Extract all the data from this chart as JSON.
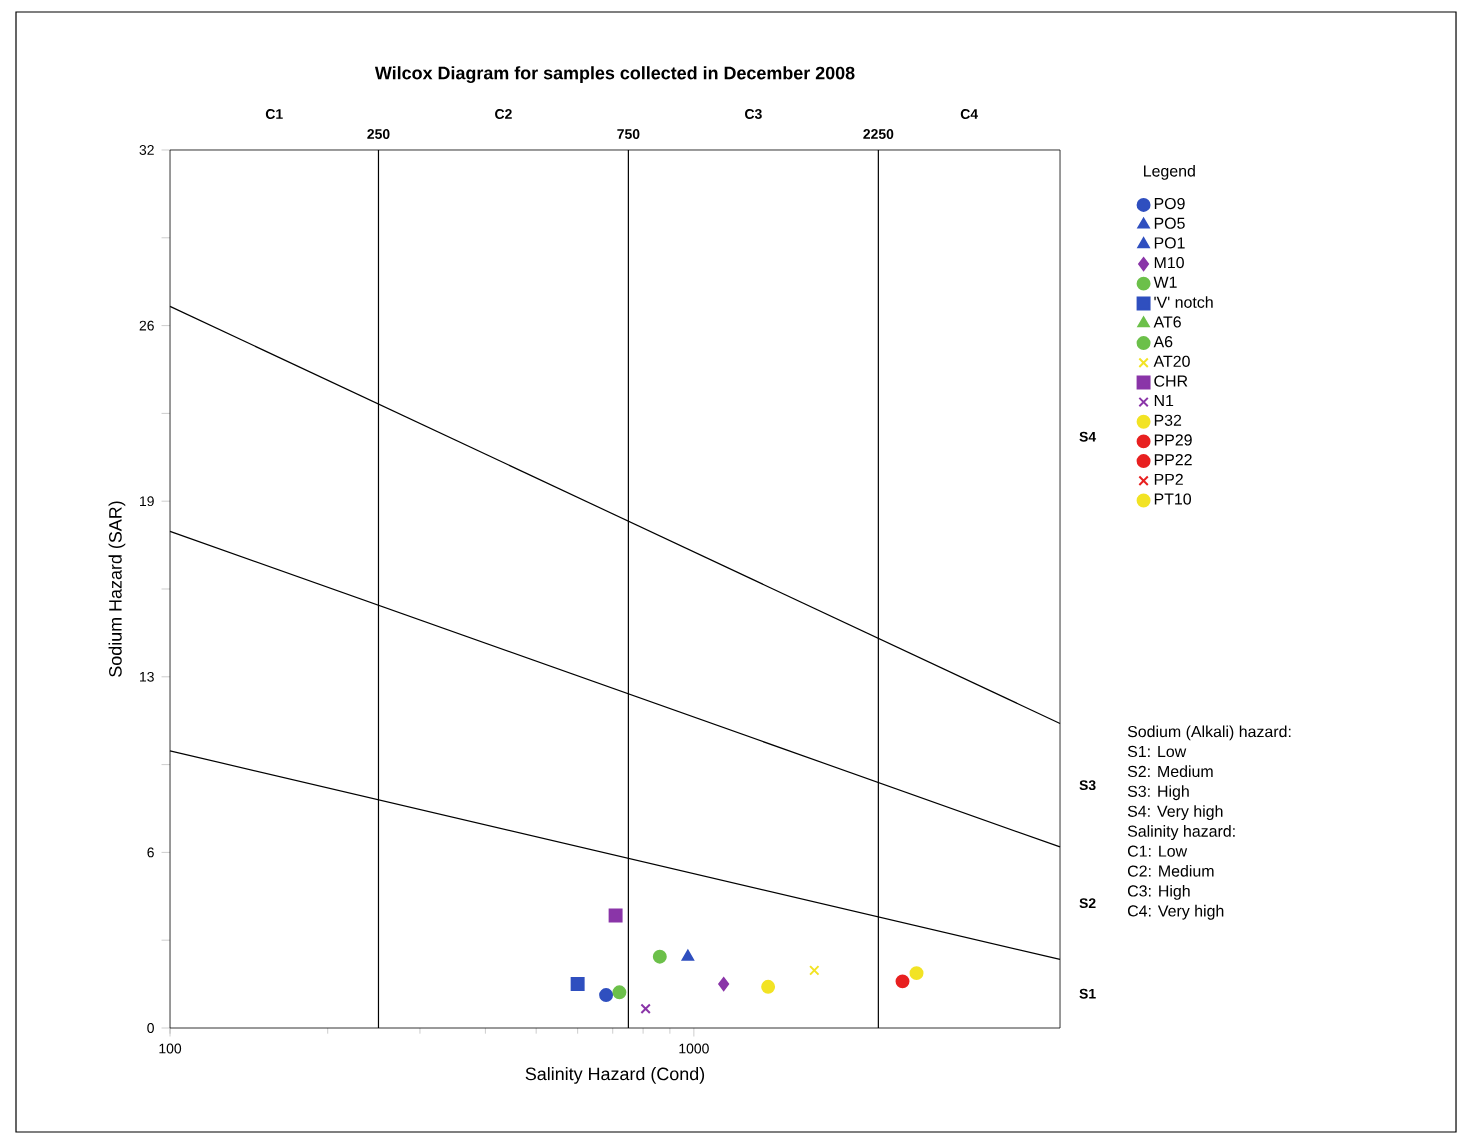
{
  "chart_data": {
    "type": "scatter",
    "title": "Wilcox Diagram for samples collected in December 2008",
    "xlabel": "Salinity Hazard (Cond)",
    "ylabel": "Sodium Hazard (SAR)",
    "legend_title": "Legend",
    "log": "x",
    "xlim": [
      100,
      5000
    ],
    "ylim": [
      0,
      32
    ],
    "xticks": [
      100,
      1000
    ],
    "yticks": [
      0,
      {
        "value": 3.2,
        "label": null
      },
      {
        "value": 6.4,
        "label": "6"
      },
      {
        "value": 9.6,
        "label": null
      },
      {
        "value": 12.8,
        "label": "13"
      },
      {
        "value": 16,
        "label": null
      },
      {
        "value": 19.2,
        "label": "19"
      },
      {
        "value": 22.4,
        "label": null
      },
      {
        "value": 25.6,
        "label": "26"
      },
      {
        "value": 28.8,
        "label": null
      },
      32
    ],
    "legend": "top right",
    "series": [
      {
        "name": "PO9",
        "color": "#2f4fbf",
        "marker": "circle",
        "x": [
          680
        ],
        "values": [
          1.2
        ]
      },
      {
        "name": "PO5",
        "color": "#2f4fbf",
        "marker": "triangle",
        "x": [
          974
        ],
        "values": [
          2.6
        ]
      },
      {
        "name": "PO1",
        "color": "#2f4fbf",
        "marker": "triangle",
        "x": [
          null
        ],
        "values": [
          null
        ]
      },
      {
        "name": "M10",
        "color": "#8a35a8",
        "marker": "diamond",
        "x": [
          1140
        ],
        "values": [
          1.6
        ]
      },
      {
        "name": "W1",
        "color": "#6cc04a",
        "marker": "circle",
        "x": [
          721
        ],
        "values": [
          1.3
        ]
      },
      {
        "name": "'V' notch",
        "color": "#2f4fbf",
        "marker": "square",
        "x": [
          600
        ],
        "values": [
          1.6
        ]
      },
      {
        "name": "AT6",
        "color": "#6cc04a",
        "marker": "triangle",
        "x": [
          null
        ],
        "values": [
          null
        ]
      },
      {
        "name": "A6",
        "color": "#6cc04a",
        "marker": "circle",
        "x": [
          861
        ],
        "values": [
          2.6
        ]
      },
      {
        "name": "AT20",
        "color": "#f2e324",
        "marker": "cross",
        "x": [
          1698
        ],
        "values": [
          2.1
        ]
      },
      {
        "name": "CHR",
        "color": "#8a35a8",
        "marker": "square",
        "x": [
          709
        ],
        "values": [
          4.1
        ]
      },
      {
        "name": "N1",
        "color": "#8a35a8",
        "marker": "cross",
        "x": [
          809
        ],
        "values": [
          0.7
        ]
      },
      {
        "name": "P32",
        "color": "#f2e324",
        "marker": "circle",
        "x": [
          1386
        ],
        "values": [
          1.5
        ]
      },
      {
        "name": "PP29",
        "color": "#e82020",
        "marker": "circle",
        "x": [
          2502
        ],
        "values": [
          1.7
        ]
      },
      {
        "name": "PP22",
        "color": "#e82020",
        "marker": "circle",
        "x": [
          null
        ],
        "values": [
          null
        ]
      },
      {
        "name": "PP2",
        "color": "#e82020",
        "marker": "cross",
        "x": [
          null
        ],
        "values": [
          null
        ]
      },
      {
        "name": "PT10",
        "color": "#f2e324",
        "marker": "circle",
        "x": [
          2661
        ],
        "values": [
          2.0
        ]
      },
      {
        "type": "line",
        "color": "#000000",
        "marker": "none",
        "x": [
          100,
          5000
        ],
        "values": [
          26.3,
          11.1
        ]
      },
      {
        "type": "line",
        "color": "#000000",
        "marker": "none",
        "x": [
          100,
          5000
        ],
        "values": [
          18.1,
          6.6
        ]
      },
      {
        "type": "line",
        "color": "#000000",
        "marker": "none",
        "x": [
          100,
          5000
        ],
        "values": [
          10.1,
          2.5
        ]
      }
    ],
    "ref_lines": [
      {
        "axis": "x",
        "value": 250,
        "label": "250"
      },
      {
        "axis": "x",
        "value": 750,
        "label": "750"
      },
      {
        "axis": "x",
        "value": 2250,
        "label": "2250"
      }
    ],
    "annotations": [
      "C1",
      "C2",
      "C3",
      "C4",
      "S4",
      "S3",
      "S2",
      "S1",
      "Sodium (Alkali) hazard:",
      "S1: Low",
      "S2: Medium",
      "S3: High",
      "S4: Very high",
      "Salinity hazard:",
      "C1: Low",
      "C2: Medium",
      "C3: High",
      "C4: Very high"
    ]
  }
}
